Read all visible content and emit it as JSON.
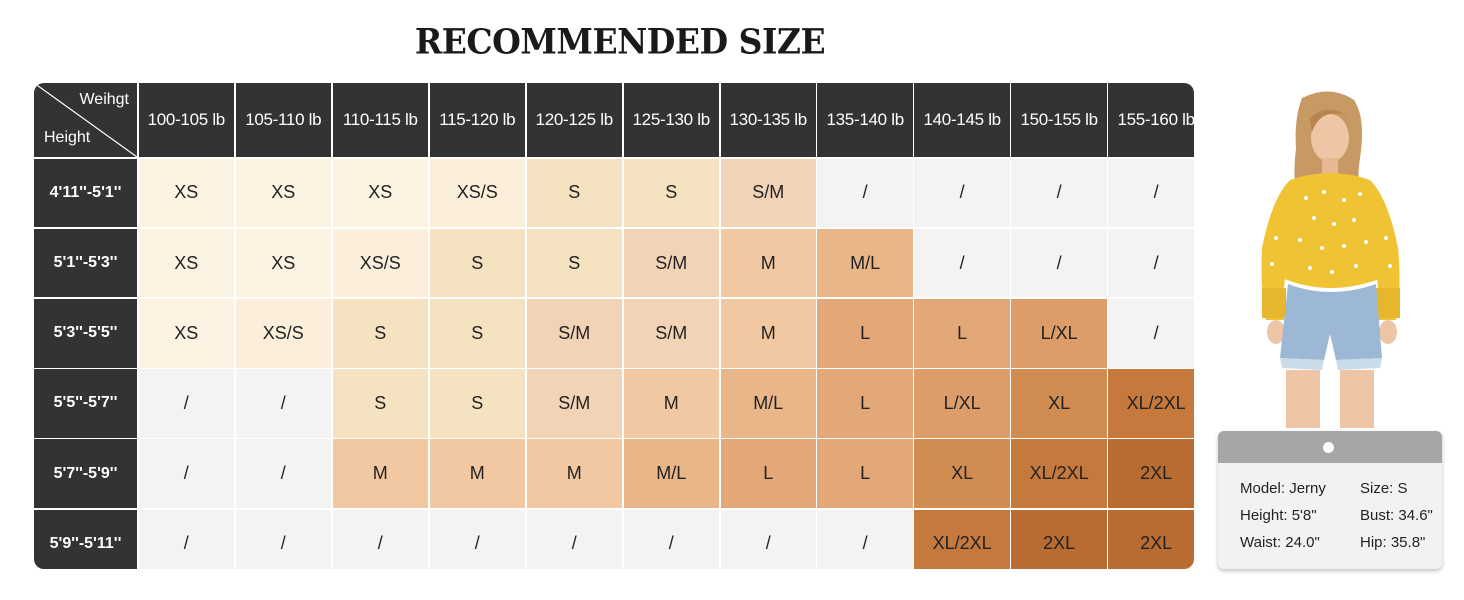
{
  "title": "RECOMMENDED SIZE",
  "corner": {
    "weight_label": "Weihgt",
    "height_label": "Height"
  },
  "weights": [
    "100-105 lb",
    "105-110 lb",
    "110-115 lb",
    "115-120 lb",
    "120-125 lb",
    "125-130 lb",
    "130-135 lb",
    "135-140 lb",
    "140-145 lb",
    "150-155 lb",
    "155-160 lb"
  ],
  "rows": [
    {
      "height": "4'11''-5'1''",
      "sizes": [
        "XS",
        "XS",
        "XS",
        "XS/S",
        "S",
        "S",
        "S/M",
        "/",
        "/",
        "/",
        "/"
      ]
    },
    {
      "height": "5'1''-5'3''",
      "sizes": [
        "XS",
        "XS",
        "XS/S",
        "S",
        "S",
        "S/M",
        "M",
        "M/L",
        "/",
        "/",
        "/"
      ]
    },
    {
      "height": "5'3''-5'5''",
      "sizes": [
        "XS",
        "XS/S",
        "S",
        "S",
        "S/M",
        "S/M",
        "M",
        "L",
        "L",
        "L/XL",
        "/"
      ]
    },
    {
      "height": "5'5''-5'7''",
      "sizes": [
        "/",
        "/",
        "S",
        "S",
        "S/M",
        "M",
        "M/L",
        "L",
        "L/XL",
        "XL",
        "XL/2XL"
      ]
    },
    {
      "height": "5'7''-5'9''",
      "sizes": [
        "/",
        "/",
        "M",
        "M",
        "M",
        "M/L",
        "L",
        "L",
        "XL",
        "XL/2XL",
        "2XL"
      ]
    },
    {
      "height": "5'9''-5'11''",
      "sizes": [
        "/",
        "/",
        "/",
        "/",
        "/",
        "/",
        "/",
        "/",
        "XL/2XL",
        "2XL",
        "2XL"
      ]
    }
  ],
  "size_colors": {
    "XS": "#fcf3e2",
    "XS/S": "#fbefdc",
    "S": "#f4e2c0",
    "S/M": "#f3d3b5",
    "M": "#f1c8a2",
    "M/L": "#e9b689",
    "L": "#e3a878",
    "L/XL": "#dd9d6b",
    "XL": "#d18c51",
    "XL/2XL": "#c5793d",
    "2XL": "#b96c32",
    "/": "#f3f3f3"
  },
  "model": {
    "name": "Model: Jerny",
    "size": "Size: S",
    "height": "Height: 5'8\"",
    "bust": "Bust: 34.6\"",
    "waist": "Waist: 24.0\"",
    "hip": "Hip: 35.8\""
  }
}
